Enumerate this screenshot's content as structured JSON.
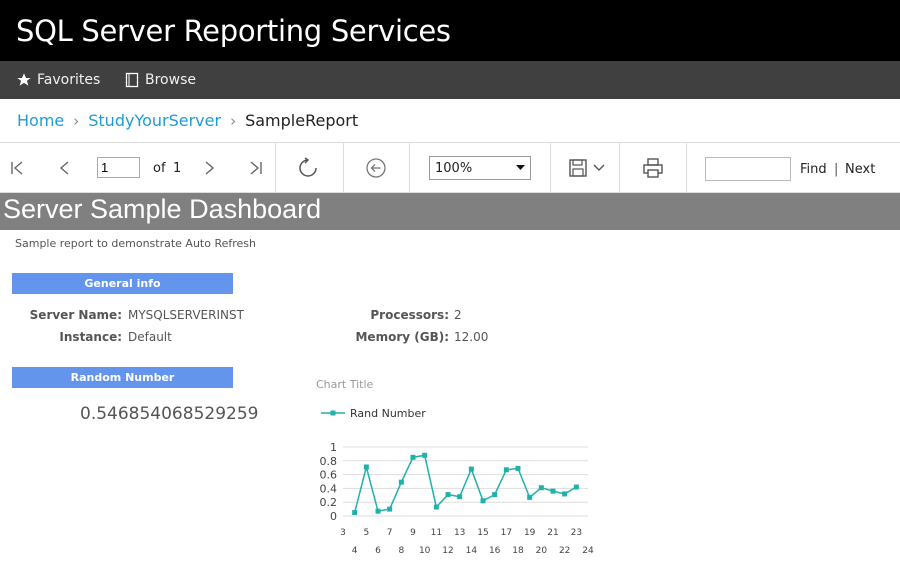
{
  "app": {
    "title": "SQL Server Reporting Services"
  },
  "nav": {
    "favorites": "Favorites",
    "browse": "Browse"
  },
  "breadcrumb": {
    "home": "Home",
    "folder": "StudyYourServer",
    "current": "SampleReport"
  },
  "toolbar": {
    "page_value": "1",
    "of_label": "of",
    "total_pages": "1",
    "zoom": "100%",
    "find_placeholder": "",
    "find_label": "Find",
    "separator": "|",
    "next_label": "Next"
  },
  "report": {
    "title": "Server Sample Dashboard",
    "subtitle": "Sample report to demonstrate Auto Refresh",
    "general_info_header": "General info",
    "server_name_label": "Server Name:",
    "server_name_value": "MYSQLSERVERINST",
    "instance_label": "Instance:",
    "instance_value": "Default",
    "processors_label": "Processors:",
    "processors_value": "2",
    "memory_label": "Memory (GB):",
    "memory_value": "12.00",
    "random_header": "Random Number",
    "random_value": "0.546854068529259"
  },
  "colors": {
    "accent": "#1e9bd7",
    "section_bar": "#6495ed",
    "header_bar": "#808080",
    "series": "#20b2aa"
  },
  "chart_data": {
    "type": "line",
    "title": "Chart Title",
    "series": [
      {
        "name": "Rand Number",
        "x": [
          4,
          5,
          6,
          7,
          8,
          9,
          10,
          11,
          12,
          13,
          14,
          15,
          16,
          17,
          18,
          19,
          20,
          21,
          22,
          23
        ],
        "values": [
          0.05,
          0.71,
          0.07,
          0.1,
          0.49,
          0.85,
          0.88,
          0.13,
          0.31,
          0.28,
          0.68,
          0.22,
          0.31,
          0.67,
          0.69,
          0.27,
          0.41,
          0.36,
          0.32,
          0.42
        ]
      }
    ],
    "x_tick_labels_top": [
      "3",
      "5",
      "7",
      "9",
      "11",
      "13",
      "15",
      "17",
      "19",
      "21",
      "23"
    ],
    "x_tick_labels_bottom": [
      "4",
      "6",
      "8",
      "10",
      "12",
      "14",
      "16",
      "18",
      "20",
      "22",
      "24"
    ],
    "y_tick_labels": [
      "0",
      "0.2",
      "0.4",
      "0.6",
      "0.8",
      "1"
    ],
    "xlim": [
      3,
      24
    ],
    "ylim": [
      0,
      1
    ],
    "grid": true,
    "legend_position": "top-left"
  }
}
